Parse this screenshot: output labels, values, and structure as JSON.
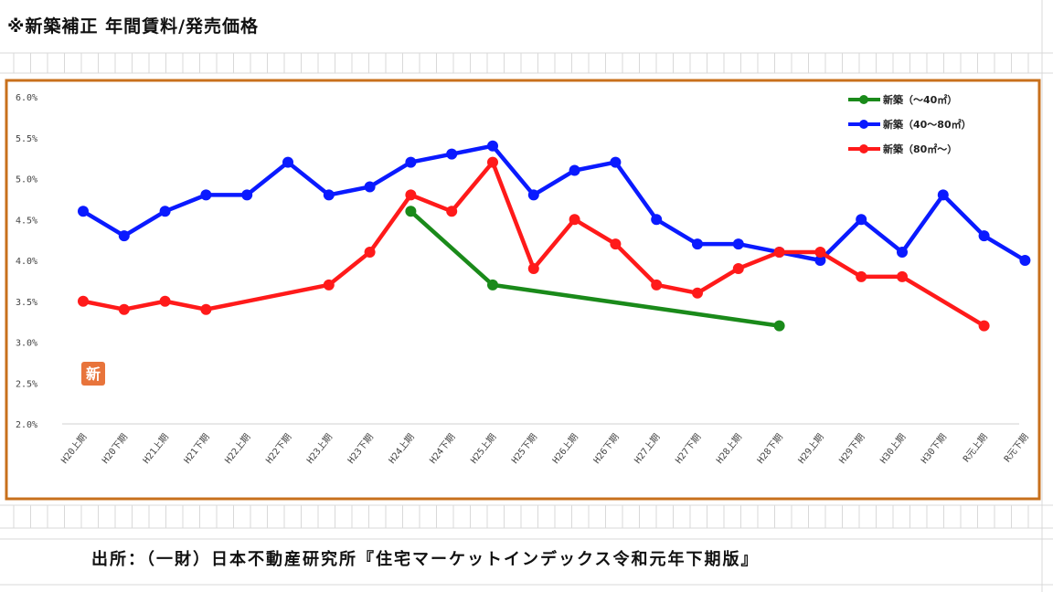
{
  "title": "※新築補正 年間賃料/発売価格",
  "source": "出所：（一財）日本不動産研究所『住宅マーケットインデックス令和元年下期版』",
  "stamp": "新",
  "colors": {
    "frame": "#c8701c",
    "grid": "#d9d9d9",
    "stamp": "#e8743b"
  },
  "chart_data": {
    "type": "line",
    "categories": [
      "H20上期",
      "H20下期",
      "H21上期",
      "H21下期",
      "H22上期",
      "H22下期",
      "H23上期",
      "H23下期",
      "H24上期",
      "H24下期",
      "H25上期",
      "H25下期",
      "H26上期",
      "H26下期",
      "H27上期",
      "H27下期",
      "H28上期",
      "H28下期",
      "H29上期",
      "H29下期",
      "H30上期",
      "H30下期",
      "R元上期",
      "R元下期"
    ],
    "yticks": [
      "6.0%",
      "5.5%",
      "5.0%",
      "4.5%",
      "4.0%",
      "3.5%",
      "3.0%",
      "2.5%",
      "2.0%"
    ],
    "ylim": [
      2.0,
      6.0
    ],
    "legend_position": "top-right",
    "series": [
      {
        "name": "新築（～40㎡）",
        "color": "#1a8a1a",
        "values": [
          null,
          null,
          null,
          null,
          null,
          null,
          null,
          null,
          4.6,
          null,
          3.7,
          null,
          null,
          null,
          null,
          null,
          null,
          3.2,
          null,
          null,
          null,
          null,
          null,
          null
        ]
      },
      {
        "name": "新築（40～80㎡）",
        "color": "#0a1aff",
        "values": [
          4.6,
          4.3,
          4.6,
          4.8,
          4.8,
          5.2,
          4.8,
          4.9,
          5.2,
          5.3,
          5.4,
          4.8,
          5.1,
          5.2,
          4.5,
          4.2,
          4.2,
          4.1,
          4.0,
          4.5,
          4.1,
          4.8,
          4.3,
          4.0
        ]
      },
      {
        "name": "新築（80㎡～）",
        "color": "#ff1a1a",
        "values": [
          3.5,
          3.4,
          3.5,
          3.4,
          null,
          null,
          3.7,
          4.1,
          4.8,
          4.6,
          5.2,
          3.9,
          4.5,
          4.2,
          3.7,
          3.6,
          3.9,
          4.1,
          4.1,
          3.8,
          3.8,
          null,
          3.2,
          null
        ]
      }
    ]
  }
}
